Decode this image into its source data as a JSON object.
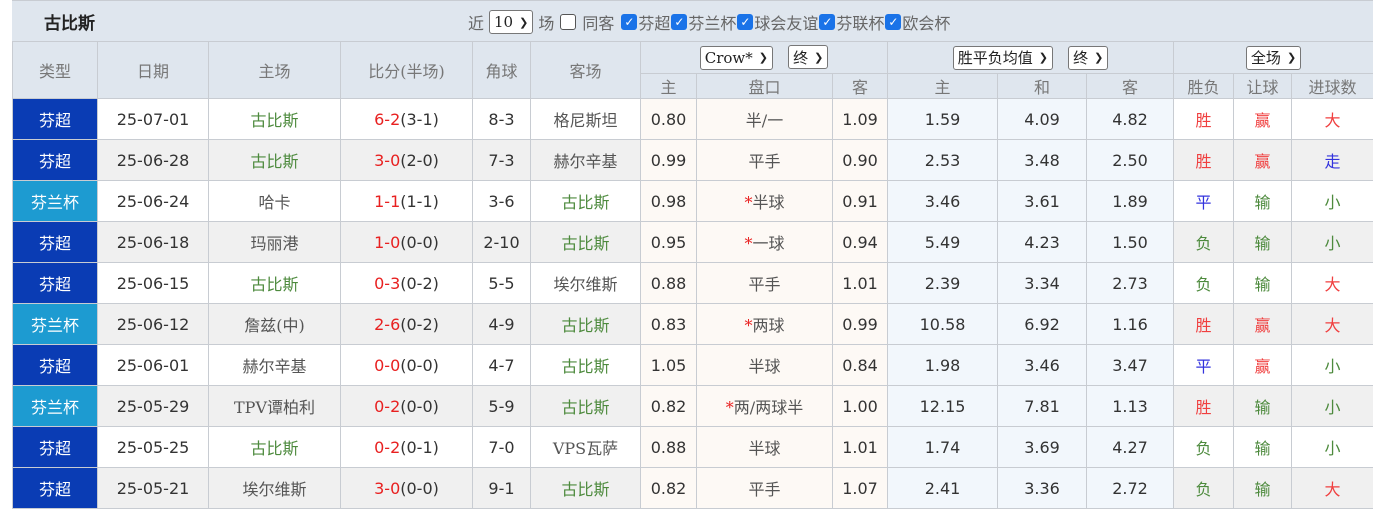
{
  "team_title": "古比斯",
  "filters": {
    "recent_prefix": "近",
    "recent_count": "10",
    "recent_suffix": "场",
    "same_venue_label": "同客",
    "same_venue_checked": false,
    "competitions": [
      {
        "label": "芬超",
        "checked": true
      },
      {
        "label": "芬兰杯",
        "checked": true
      },
      {
        "label": "球会友谊",
        "checked": true
      },
      {
        "label": "芬联杯",
        "checked": true
      },
      {
        "label": "欧会杯",
        "checked": true
      }
    ]
  },
  "header": {
    "type": "类型",
    "date": "日期",
    "home": "主场",
    "score": "比分(半场)",
    "corner": "角球",
    "away": "客场",
    "crown_company": "Crow*",
    "crown_period": "终",
    "euro_company": "胜平负均值",
    "euro_period": "终",
    "result_scope": "全场",
    "crown_cols": [
      "主",
      "盘口",
      "客"
    ],
    "euro_cols": [
      "主",
      "和",
      "客"
    ],
    "result_cols": [
      "胜负",
      "让球",
      "进球数"
    ]
  },
  "colors": {
    "league": "#0a3cb4",
    "cup": "#1d9bd1",
    "win": "#f04040",
    "draw": "#3333dd",
    "lose": "#4d8a3d",
    "score": "#e82020"
  },
  "rows": [
    {
      "type": "芬超",
      "kind": "league",
      "date": "25-07-01",
      "home": "古比斯",
      "ft": "6-2",
      "ht": "(3-1)",
      "corner": "8-3",
      "away": "格尼斯坦",
      "ch": "0.80",
      "hc": "半/一",
      "star": false,
      "ca": "1.09",
      "eh": "1.59",
      "ed": "4.09",
      "ea": "4.82",
      "r1": "胜",
      "r2": "赢",
      "r3": "大"
    },
    {
      "type": "芬超",
      "kind": "league",
      "date": "25-06-28",
      "home": "古比斯",
      "ft": "3-0",
      "ht": "(2-0)",
      "corner": "7-3",
      "away": "赫尔辛基",
      "ch": "0.99",
      "hc": "平手",
      "star": false,
      "ca": "0.90",
      "eh": "2.53",
      "ed": "3.48",
      "ea": "2.50",
      "r1": "胜",
      "r2": "赢",
      "r3": "走"
    },
    {
      "type": "芬兰杯",
      "kind": "cup",
      "date": "25-06-24",
      "home": "哈卡",
      "ft": "1-1",
      "ht": "(1-1)",
      "corner": "3-6",
      "away": "古比斯",
      "ch": "0.98",
      "hc": "半球",
      "star": true,
      "ca": "0.91",
      "eh": "3.46",
      "ed": "3.61",
      "ea": "1.89",
      "r1": "平",
      "r2": "输",
      "r3": "小"
    },
    {
      "type": "芬超",
      "kind": "league",
      "date": "25-06-18",
      "home": "玛丽港",
      "ft": "1-0",
      "ht": "(0-0)",
      "corner": "2-10",
      "away": "古比斯",
      "ch": "0.95",
      "hc": "一球",
      "star": true,
      "ca": "0.94",
      "eh": "5.49",
      "ed": "4.23",
      "ea": "1.50",
      "r1": "负",
      "r2": "输",
      "r3": "小"
    },
    {
      "type": "芬超",
      "kind": "league",
      "date": "25-06-15",
      "home": "古比斯",
      "ft": "0-3",
      "ht": "(0-2)",
      "corner": "5-5",
      "away": "埃尔维斯",
      "ch": "0.88",
      "hc": "平手",
      "star": false,
      "ca": "1.01",
      "eh": "2.39",
      "ed": "3.34",
      "ea": "2.73",
      "r1": "负",
      "r2": "输",
      "r3": "大"
    },
    {
      "type": "芬兰杯",
      "kind": "cup",
      "date": "25-06-12",
      "home": "詹兹(中)",
      "ft": "2-6",
      "ht": "(0-2)",
      "corner": "4-9",
      "away": "古比斯",
      "ch": "0.83",
      "hc": "两球",
      "star": true,
      "ca": "0.99",
      "eh": "10.58",
      "ed": "6.92",
      "ea": "1.16",
      "r1": "胜",
      "r2": "赢",
      "r3": "大"
    },
    {
      "type": "芬超",
      "kind": "league",
      "date": "25-06-01",
      "home": "赫尔辛基",
      "ft": "0-0",
      "ht": "(0-0)",
      "corner": "4-7",
      "away": "古比斯",
      "ch": "1.05",
      "hc": "半球",
      "star": false,
      "ca": "0.84",
      "eh": "1.98",
      "ed": "3.46",
      "ea": "3.47",
      "r1": "平",
      "r2": "赢",
      "r3": "小"
    },
    {
      "type": "芬兰杯",
      "kind": "cup",
      "date": "25-05-29",
      "home": "TPV谭柏利",
      "ft": "0-2",
      "ht": "(0-0)",
      "corner": "5-9",
      "away": "古比斯",
      "ch": "0.82",
      "hc": "两/两球半",
      "star": true,
      "ca": "1.00",
      "eh": "12.15",
      "ed": "7.81",
      "ea": "1.13",
      "r1": "胜",
      "r2": "输",
      "r3": "小"
    },
    {
      "type": "芬超",
      "kind": "league",
      "date": "25-05-25",
      "home": "古比斯",
      "ft": "0-2",
      "ht": "(0-1)",
      "corner": "7-0",
      "away": "VPS瓦萨",
      "ch": "0.88",
      "hc": "半球",
      "star": false,
      "ca": "1.01",
      "eh": "1.74",
      "ed": "3.69",
      "ea": "4.27",
      "r1": "负",
      "r2": "输",
      "r3": "小"
    },
    {
      "type": "芬超",
      "kind": "league",
      "date": "25-05-21",
      "home": "埃尔维斯",
      "ft": "3-0",
      "ht": "(0-0)",
      "corner": "9-1",
      "away": "古比斯",
      "ch": "0.82",
      "hc": "平手",
      "star": false,
      "ca": "1.07",
      "eh": "2.41",
      "ed": "3.36",
      "ea": "2.72",
      "r1": "负",
      "r2": "输",
      "r3": "大"
    }
  ]
}
